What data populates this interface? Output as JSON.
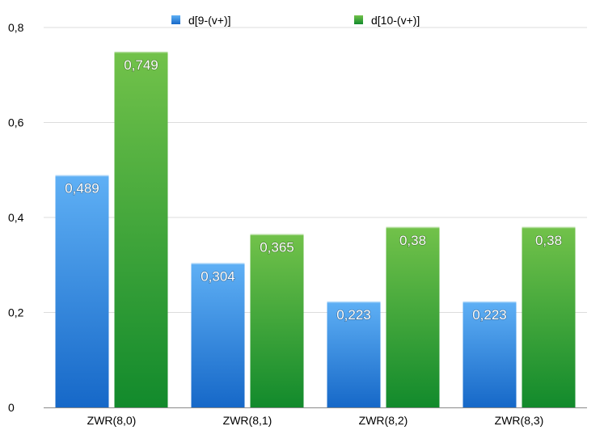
{
  "chart_data": {
    "type": "bar",
    "categories": [
      "ZWR(8,0)",
      "ZWR(8,1)",
      "ZWR(8,2)",
      "ZWR(8,3)"
    ],
    "series": [
      {
        "name": "d[9-(v+)]",
        "values": [
          0.489,
          0.304,
          0.223,
          0.223
        ],
        "labels": [
          "0,489",
          "0,304",
          "0,223",
          "0,223"
        ],
        "color": "#3a8fe0"
      },
      {
        "name": "d[10-(v+)]",
        "values": [
          0.749,
          0.365,
          0.38,
          0.38
        ],
        "labels": [
          "0,749",
          "0,365",
          "0,38",
          "0,38"
        ],
        "color": "#2fa33a"
      }
    ],
    "ylim": [
      0,
      0.8
    ],
    "yticks": [
      0,
      0.2,
      0.4,
      0.6,
      0.8
    ],
    "ytick_labels": [
      "0",
      "0,2",
      "0,4",
      "0,6",
      "0,8"
    ],
    "grid": true,
    "legend_position": "top-center"
  }
}
